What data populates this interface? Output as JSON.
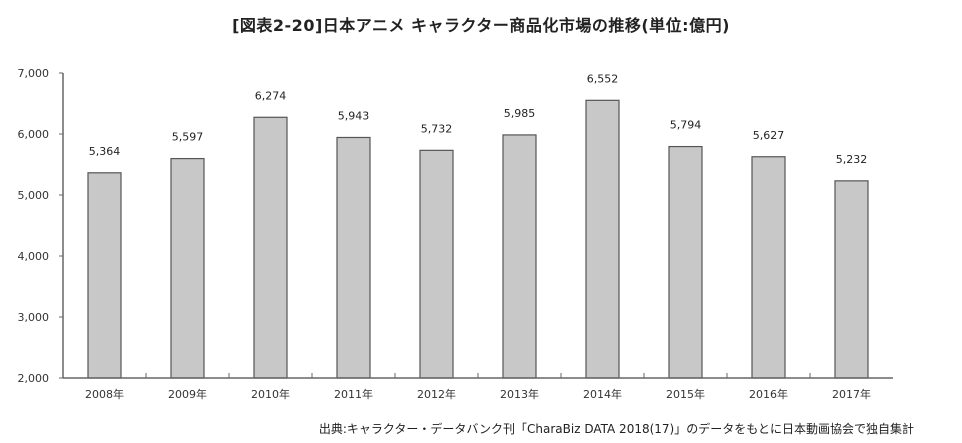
{
  "chart_data": {
    "type": "bar",
    "title": "[図表2-20]日本アニメ キャラクター商品化市場の推移(単位:億円)",
    "categories": [
      "2008年",
      "2009年",
      "2010年",
      "2011年",
      "2012年",
      "2013年",
      "2014年",
      "2015年",
      "2016年",
      "2017年"
    ],
    "values": [
      5364,
      5597,
      6274,
      5943,
      5732,
      5985,
      6552,
      5794,
      5627,
      5232
    ],
    "value_labels": [
      "5,364",
      "5,597",
      "6,274",
      "5,943",
      "5,732",
      "5,985",
      "6,552",
      "5,794",
      "5,627",
      "5,232"
    ],
    "ylim": [
      2000,
      7000
    ],
    "y_ticks": [
      2000,
      3000,
      4000,
      5000,
      6000,
      7000
    ],
    "y_tick_labels": [
      "2,000",
      "3,000",
      "4,000",
      "5,000",
      "6,000",
      "7,000"
    ],
    "bar_color": "#c8c8c8",
    "bar_stroke": "#555555",
    "grid": false,
    "source": "出典:キャラクター・データバンク刊「CharaBiz DATA 2018(17)」のデータをもとに日本動画協会で独自集計"
  }
}
